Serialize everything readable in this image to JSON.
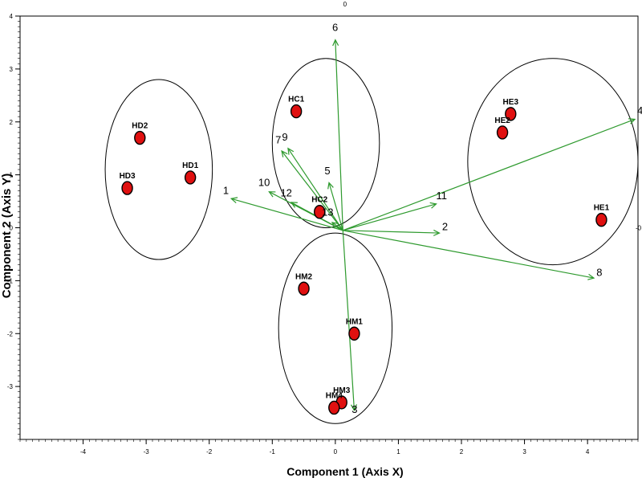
{
  "chart_data": {
    "type": "scatter",
    "xlabel": "Component 1 (Axis X)",
    "ylabel": "Component 2 (Axis Y)",
    "xlim": [
      -5.0,
      4.8
    ],
    "ylim": [
      -4.0,
      4.0
    ],
    "x_ticks": [
      -4,
      -3,
      -2,
      -1,
      0,
      1,
      2,
      3,
      4
    ],
    "y_ticks": [
      -3,
      -2,
      -1,
      0,
      1,
      2,
      3,
      4
    ],
    "origin_marks": {
      "top": "0",
      "right": "0"
    },
    "grid": false,
    "points_color": "#e01010",
    "vector_color": "#2e9a2e",
    "points": [
      {
        "label": "HD2",
        "x": -3.1,
        "y": 1.7
      },
      {
        "label": "HD3",
        "x": -3.3,
        "y": 0.75
      },
      {
        "label": "HD1",
        "x": -2.3,
        "y": 0.95
      },
      {
        "label": "HC1",
        "x": -0.62,
        "y": 2.2
      },
      {
        "label": "HC2",
        "x": -0.25,
        "y": 0.3
      },
      {
        "label": "HM2",
        "x": -0.5,
        "y": -1.15
      },
      {
        "label": "HM1",
        "x": 0.3,
        "y": -2.0
      },
      {
        "label": "HM3",
        "x": 0.1,
        "y": -3.3
      },
      {
        "label": "HM4",
        "x": -0.02,
        "y": -3.4
      },
      {
        "label": "HE3",
        "x": 2.78,
        "y": 2.15
      },
      {
        "label": "HE2",
        "x": 2.65,
        "y": 1.8
      },
      {
        "label": "HE1",
        "x": 4.22,
        "y": 0.15
      }
    ],
    "vectors": [
      {
        "label": "1",
        "x": -1.65,
        "y": 0.55
      },
      {
        "label": "2",
        "x": 1.65,
        "y": -0.1
      },
      {
        "label": "3",
        "x": 0.3,
        "y": -3.45
      },
      {
        "label": "4",
        "x": 4.75,
        "y": 2.05
      },
      {
        "label": "5",
        "x": -0.1,
        "y": 0.85
      },
      {
        "label": "6",
        "x": 0.0,
        "y": 3.55
      },
      {
        "label": "7",
        "x": -0.85,
        "y": 1.45
      },
      {
        "label": "8",
        "x": 4.1,
        "y": -0.95
      },
      {
        "label": "9",
        "x": -0.75,
        "y": 1.5
      },
      {
        "label": "10",
        "x": -1.05,
        "y": 0.68
      },
      {
        "label": "11",
        "x": 1.6,
        "y": 0.45
      },
      {
        "label": "12",
        "x": -0.7,
        "y": 0.48
      },
      {
        "label": "13",
        "x": -0.05,
        "y": 0.1
      }
    ],
    "groups": [
      {
        "cx": -2.8,
        "cy": 1.1,
        "rx": 0.85,
        "ry": 1.7
      },
      {
        "cx": -0.15,
        "cy": 1.6,
        "rx": 0.85,
        "ry": 1.6
      },
      {
        "cx": 0.0,
        "cy": -1.9,
        "rx": 0.9,
        "ry": 1.8
      },
      {
        "cx": 3.45,
        "cy": 1.25,
        "rx": 1.35,
        "ry": 1.95
      }
    ]
  }
}
